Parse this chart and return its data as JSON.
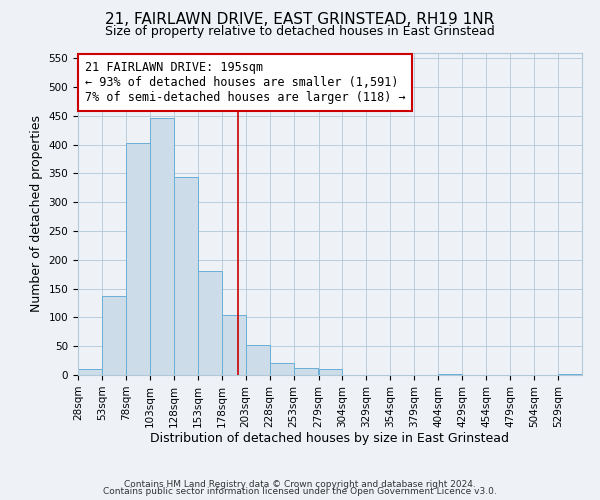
{
  "title": "21, FAIRLAWN DRIVE, EAST GRINSTEAD, RH19 1NR",
  "subtitle": "Size of property relative to detached houses in East Grinstead",
  "xlabel": "Distribution of detached houses by size in East Grinstead",
  "ylabel": "Number of detached properties",
  "bar_bins": [
    28,
    53,
    78,
    103,
    128,
    153,
    178,
    203,
    228,
    253,
    279,
    304,
    329,
    354,
    379,
    404,
    429,
    454,
    479,
    504,
    529
  ],
  "bar_heights": [
    10,
    137,
    402,
    447,
    344,
    180,
    105,
    52,
    20,
    13,
    10,
    0,
    0,
    0,
    0,
    1,
    0,
    0,
    0,
    0,
    1
  ],
  "bar_color": "#ccdce8",
  "bar_edgecolor": "#6aaed6",
  "property_value": 195,
  "vline_color": "#cc0000",
  "annotation_title": "21 FAIRLAWN DRIVE: 195sqm",
  "annotation_line1": "← 93% of detached houses are smaller (1,591)",
  "annotation_line2": "7% of semi-detached houses are larger (118) →",
  "annotation_box_edgecolor": "#cc0000",
  "annotation_box_facecolor": "#ffffff",
  "ylim": [
    0,
    560
  ],
  "xlim": [
    28,
    554
  ],
  "tick_labels": [
    "28sqm",
    "53sqm",
    "78sqm",
    "103sqm",
    "128sqm",
    "153sqm",
    "178sqm",
    "203sqm",
    "228sqm",
    "253sqm",
    "279sqm",
    "304sqm",
    "329sqm",
    "354sqm",
    "379sqm",
    "404sqm",
    "429sqm",
    "454sqm",
    "479sqm",
    "504sqm",
    "529sqm"
  ],
  "yticks": [
    0,
    50,
    100,
    150,
    200,
    250,
    300,
    350,
    400,
    450,
    500,
    550
  ],
  "footnote1": "Contains HM Land Registry data © Crown copyright and database right 2024.",
  "footnote2": "Contains public sector information licensed under the Open Government Licence v3.0.",
  "title_fontsize": 11,
  "subtitle_fontsize": 9,
  "axis_label_fontsize": 9,
  "tick_fontsize": 7.5,
  "annotation_fontsize": 8.5,
  "footnote_fontsize": 6.5,
  "background_color": "#eef2f7",
  "grid_color": "#b0c8d8"
}
